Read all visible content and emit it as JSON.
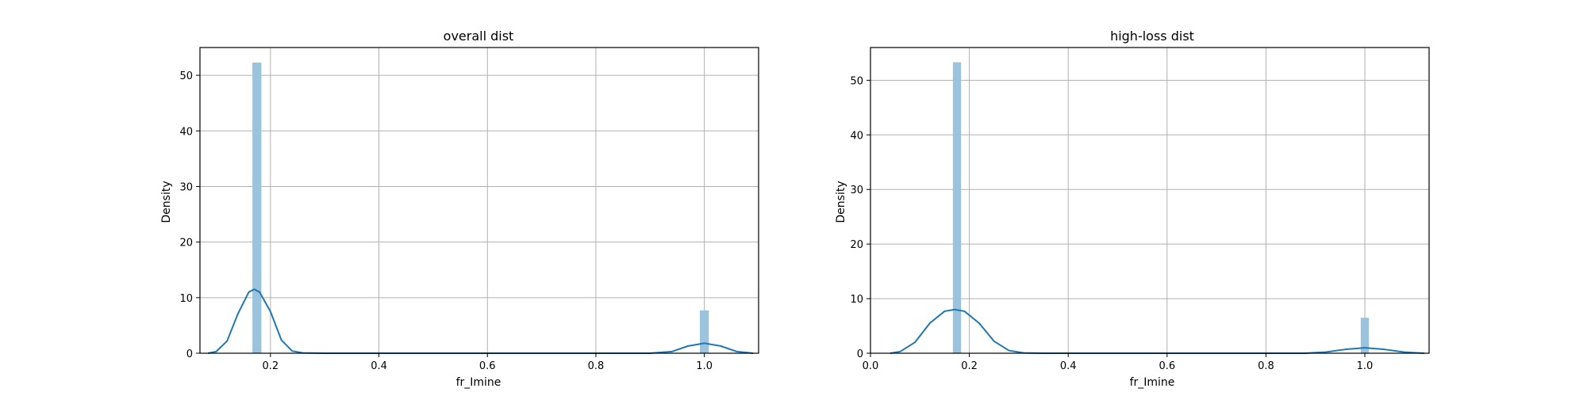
{
  "chart_data": [
    {
      "type": "bar",
      "title": "overall dist",
      "xlabel": "fr_Imine",
      "ylabel": "Density",
      "xlim": [
        0.07,
        1.1
      ],
      "ylim": [
        0,
        55
      ],
      "xticks": [
        0.2,
        0.4,
        0.6,
        0.8,
        1.0
      ],
      "xtick_labels": [
        "0.2",
        "0.4",
        "0.6",
        "0.8",
        "1.0"
      ],
      "yticks": [
        0,
        10,
        20,
        30,
        40,
        50
      ],
      "ytick_labels": [
        "0",
        "10",
        "20",
        "30",
        "40",
        "50"
      ],
      "grid": true,
      "bar_color": "#9cc3de",
      "line_color": "#1f77b4",
      "bars": [
        {
          "x0": 0.1667,
          "x1": 0.1833,
          "value": 52.3
        },
        {
          "x0": 0.9917,
          "x1": 1.0083,
          "value": 7.7
        }
      ],
      "kde": [
        [
          0.085,
          0.0
        ],
        [
          0.1,
          0.3
        ],
        [
          0.12,
          2.2
        ],
        [
          0.14,
          7.1
        ],
        [
          0.16,
          11.0
        ],
        [
          0.17,
          11.5
        ],
        [
          0.18,
          11.0
        ],
        [
          0.2,
          7.5
        ],
        [
          0.22,
          2.4
        ],
        [
          0.24,
          0.4
        ],
        [
          0.26,
          0.05
        ],
        [
          0.3,
          0.0
        ],
        [
          0.9,
          0.0
        ],
        [
          0.94,
          0.3
        ],
        [
          0.97,
          1.3
        ],
        [
          1.0,
          1.8
        ],
        [
          1.03,
          1.3
        ],
        [
          1.06,
          0.3
        ],
        [
          1.09,
          0.0
        ]
      ]
    },
    {
      "type": "bar",
      "title": "high-loss dist",
      "xlabel": "fr_Imine",
      "ylabel": "Density",
      "xlim": [
        0.0,
        1.13
      ],
      "ylim": [
        0,
        56
      ],
      "xticks": [
        0.0,
        0.2,
        0.4,
        0.6,
        0.8,
        1.0
      ],
      "xtick_labels": [
        "0.0",
        "0.2",
        "0.4",
        "0.6",
        "0.8",
        "1.0"
      ],
      "yticks": [
        0,
        10,
        20,
        30,
        40,
        50
      ],
      "ytick_labels": [
        "0",
        "10",
        "20",
        "30",
        "40",
        "50"
      ],
      "grid": true,
      "bar_color": "#9cc3de",
      "line_color": "#1f77b4",
      "bars": [
        {
          "x0": 0.1667,
          "x1": 0.1833,
          "value": 53.3
        },
        {
          "x0": 0.9917,
          "x1": 1.0083,
          "value": 6.5
        }
      ],
      "kde": [
        [
          0.04,
          0.0
        ],
        [
          0.06,
          0.3
        ],
        [
          0.09,
          2.0
        ],
        [
          0.12,
          5.5
        ],
        [
          0.15,
          7.7
        ],
        [
          0.17,
          8.0
        ],
        [
          0.19,
          7.7
        ],
        [
          0.22,
          5.5
        ],
        [
          0.25,
          2.2
        ],
        [
          0.28,
          0.5
        ],
        [
          0.31,
          0.05
        ],
        [
          0.35,
          0.0
        ],
        [
          0.88,
          0.0
        ],
        [
          0.92,
          0.2
        ],
        [
          0.96,
          0.7
        ],
        [
          1.0,
          1.0
        ],
        [
          1.04,
          0.7
        ],
        [
          1.08,
          0.2
        ],
        [
          1.12,
          0.0
        ]
      ]
    }
  ]
}
